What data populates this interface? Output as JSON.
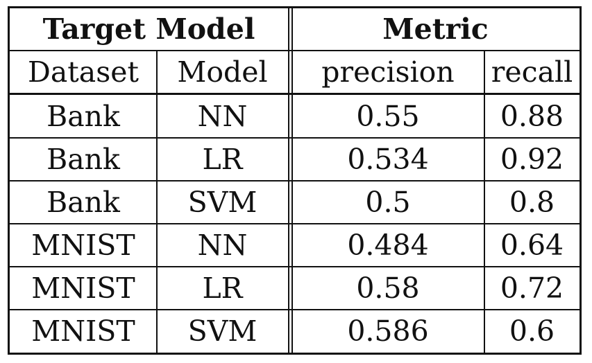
{
  "table": {
    "group_headers": [
      "Target Model",
      "Metric"
    ],
    "columns": [
      "Dataset",
      "Model",
      "precision",
      "recall"
    ],
    "rows": [
      [
        "Bank",
        "NN",
        "0.55",
        "0.88"
      ],
      [
        "Bank",
        "LR",
        "0.534",
        "0.92"
      ],
      [
        "Bank",
        "SVM",
        "0.5",
        "0.8"
      ],
      [
        "MNIST",
        "NN",
        "0.484",
        "0.64"
      ],
      [
        "MNIST",
        "LR",
        "0.58",
        "0.72"
      ],
      [
        "MNIST",
        "SVM",
        "0.586",
        "0.6"
      ]
    ]
  }
}
